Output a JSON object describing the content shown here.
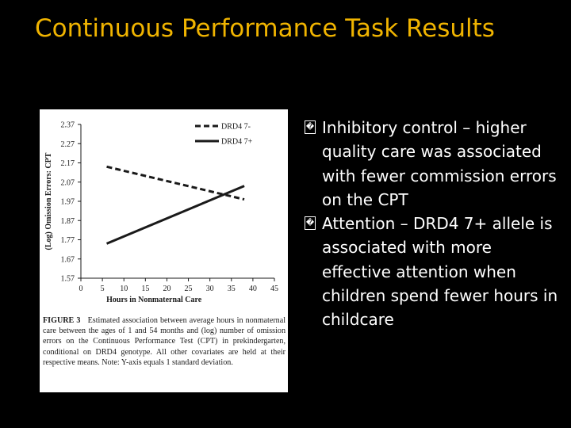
{
  "slide": {
    "title": "Continuous Performance Task Results",
    "bullets": [
      "Inhibitory control – higher quality care was associated with fewer commission errors on the CPT",
      "Attention – DRD4 7+ allele is associated with more effective attention when children spend fewer hours in childcare"
    ],
    "bullet_glyph": "�"
  },
  "figure": {
    "caption_label": "FIGURE 3",
    "caption_text": "Estimated association between average hours in nonmaternal care between the ages of 1 and 54 months and (log) number of omission errors on the Continuous Performance Test (CPT) in prekindergarten, conditional on DRD4 genotype. All other covariates are held at their respective means. Note: Y-axis equals 1 standard deviation."
  },
  "colors": {
    "title": "#f0b400",
    "background": "#000000",
    "text": "#ffffff",
    "series": "#1a1a1a"
  },
  "chart_data": {
    "type": "line",
    "xlabel": "Hours in Nonmaternal Care",
    "ylabel": "(Log) Omission Errors: CPT",
    "xlim": [
      0,
      45
    ],
    "ylim": [
      1.57,
      2.37
    ],
    "xticks": [
      "0",
      "5",
      "10",
      "15",
      "20",
      "25",
      "30",
      "35",
      "40",
      "45"
    ],
    "yticks": [
      "2.37",
      "2.27",
      "2.17",
      "2.07",
      "1.97",
      "1.87",
      "1.77",
      "1.67",
      "1.57"
    ],
    "legend_position": "top-right",
    "grid": false,
    "series": [
      {
        "name": "DRD4 7-",
        "style": "dashed",
        "x": [
          6,
          38
        ],
        "values": [
          2.15,
          1.98
        ]
      },
      {
        "name": "DRD4 7+",
        "style": "solid",
        "x": [
          6,
          38
        ],
        "values": [
          1.75,
          2.05
        ]
      }
    ]
  }
}
